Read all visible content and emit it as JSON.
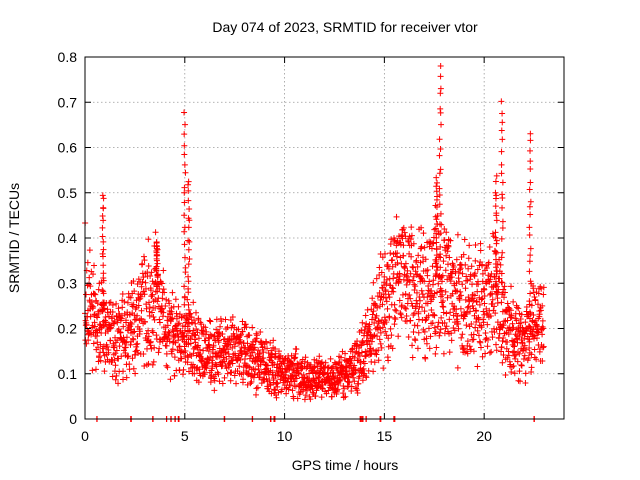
{
  "chart_data": {
    "type": "scatter",
    "title": "Day 074 of 2023, SRMTID for receiver vtor",
    "xlabel": "GPS time / hours",
    "ylabel": "SRMTID / TECUs",
    "xlim": [
      0,
      24
    ],
    "ylim": [
      0,
      0.8
    ],
    "xticks": [
      0,
      5,
      10,
      15,
      20
    ],
    "yticks": [
      0,
      0.1,
      0.2,
      0.3,
      0.4,
      0.5,
      0.6,
      0.7,
      0.8
    ],
    "xtick_labels": [
      "0",
      "5",
      "10",
      "15",
      "20"
    ],
    "ytick_labels": [
      "0",
      "0.1",
      "0.2",
      "0.3",
      "0.4",
      "0.5",
      "0.6",
      "0.7",
      "0.8"
    ],
    "grid": true,
    "marker": "plus",
    "color": "#ff0000",
    "trend": [
      [
        0.0,
        0.28
      ],
      [
        0.5,
        0.24
      ],
      [
        1.0,
        0.2
      ],
      [
        1.5,
        0.17
      ],
      [
        2.0,
        0.2
      ],
      [
        2.5,
        0.22
      ],
      [
        3.0,
        0.25
      ],
      [
        3.5,
        0.28
      ],
      [
        4.0,
        0.22
      ],
      [
        4.5,
        0.17
      ],
      [
        5.0,
        0.2
      ],
      [
        5.5,
        0.16
      ],
      [
        6.0,
        0.15
      ],
      [
        6.5,
        0.14
      ],
      [
        7.0,
        0.15
      ],
      [
        7.5,
        0.15
      ],
      [
        8.0,
        0.14
      ],
      [
        8.5,
        0.13
      ],
      [
        9.0,
        0.12
      ],
      [
        9.5,
        0.11
      ],
      [
        10.0,
        0.1
      ],
      [
        10.5,
        0.1
      ],
      [
        11.0,
        0.09
      ],
      [
        11.5,
        0.09
      ],
      [
        12.0,
        0.09
      ],
      [
        12.5,
        0.09
      ],
      [
        13.0,
        0.1
      ],
      [
        13.5,
        0.12
      ],
      [
        14.0,
        0.15
      ],
      [
        14.5,
        0.2
      ],
      [
        15.0,
        0.26
      ],
      [
        15.5,
        0.3
      ],
      [
        16.0,
        0.32
      ],
      [
        16.5,
        0.3
      ],
      [
        17.0,
        0.28
      ],
      [
        17.5,
        0.3
      ],
      [
        18.0,
        0.3
      ],
      [
        18.5,
        0.27
      ],
      [
        19.0,
        0.25
      ],
      [
        19.5,
        0.25
      ],
      [
        20.0,
        0.26
      ],
      [
        20.5,
        0.27
      ],
      [
        21.0,
        0.22
      ],
      [
        21.5,
        0.18
      ],
      [
        22.0,
        0.17
      ],
      [
        22.5,
        0.2
      ],
      [
        23.0,
        0.22
      ]
    ],
    "peaks": [
      [
        0.9,
        0.5
      ],
      [
        3.6,
        0.39
      ],
      [
        5.0,
        0.67
      ],
      [
        5.2,
        0.53
      ],
      [
        17.8,
        0.78
      ],
      [
        17.6,
        0.54
      ],
      [
        20.6,
        0.53
      ],
      [
        20.9,
        0.7
      ],
      [
        22.3,
        0.63
      ]
    ],
    "zero_points": [
      0.6,
      2.3,
      3.4,
      4.1,
      4.3,
      4.5,
      4.7,
      7.0,
      8.4,
      9.3,
      9.5,
      13.8,
      13.9,
      14.1,
      14.8,
      15.5,
      22.5
    ]
  }
}
